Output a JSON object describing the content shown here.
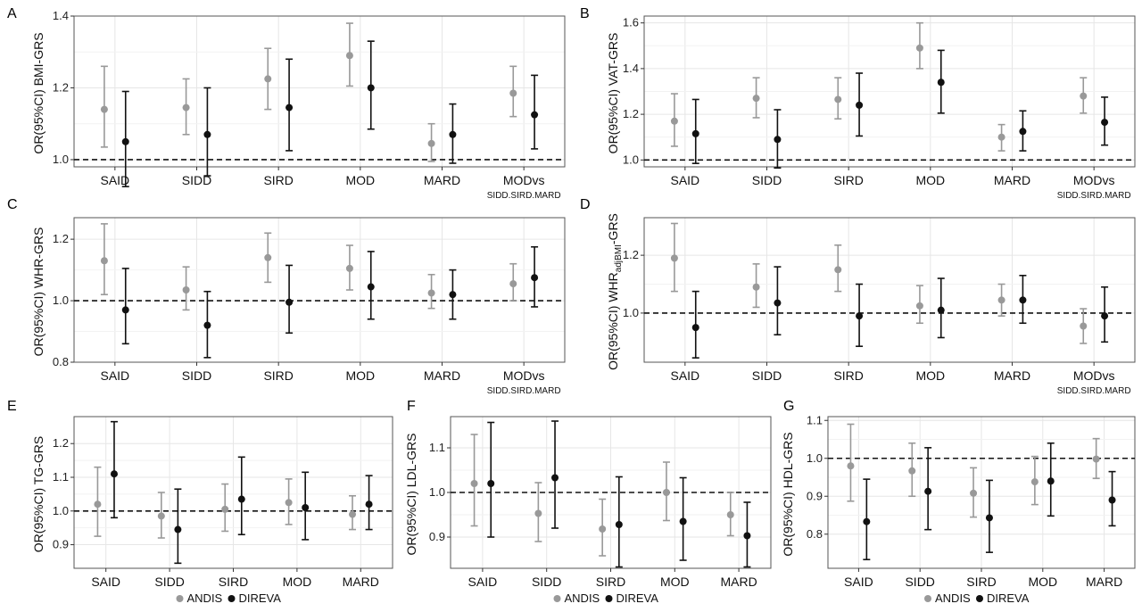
{
  "colors": {
    "andis": "#999999",
    "direva": "#111111",
    "grid": "#e6e6e6",
    "panel_border": "#555555",
    "refline": "#111111"
  },
  "chart_data": [
    {
      "panel_label": "A",
      "type": "scatter",
      "ylabel": "OR(95%CI) BMI-GRS",
      "ylim": [
        0.98,
        1.4
      ],
      "yticks": [
        1.0,
        1.2,
        1.4
      ],
      "yticklabels": [
        "1.0",
        "1.2",
        "1.4"
      ],
      "reference_line": 1.0,
      "categories": [
        "SAID",
        "SIDD",
        "SIRD",
        "MOD",
        "MARD",
        "MODvs"
      ],
      "category_sublabels": [
        "",
        "",
        "",
        "",
        "",
        "SIDD.SIRD.MARD"
      ],
      "series": [
        {
          "name": "ANDIS",
          "or": [
            1.14,
            1.145,
            1.225,
            1.29,
            1.045,
            1.185
          ],
          "lower": [
            1.035,
            1.07,
            1.14,
            1.205,
            0.995,
            1.12
          ],
          "upper": [
            1.26,
            1.225,
            1.31,
            1.38,
            1.1,
            1.26
          ]
        },
        {
          "name": "DIREVA",
          "or": [
            1.05,
            1.07,
            1.145,
            1.2,
            1.07,
            1.125
          ],
          "lower": [
            0.925,
            0.955,
            1.025,
            1.085,
            0.99,
            1.03
          ],
          "upper": [
            1.19,
            1.2,
            1.28,
            1.33,
            1.155,
            1.235
          ]
        }
      ]
    },
    {
      "panel_label": "B",
      "type": "scatter",
      "ylabel": "OR(95%CI) VAT-GRS",
      "ylim": [
        0.97,
        1.63
      ],
      "yticks": [
        1.0,
        1.2,
        1.4,
        1.6
      ],
      "yticklabels": [
        "1.0",
        "1.2",
        "1.4",
        "1.6"
      ],
      "reference_line": 1.0,
      "categories": [
        "SAID",
        "SIDD",
        "SIRD",
        "MOD",
        "MARD",
        "MODvs"
      ],
      "category_sublabels": [
        "",
        "",
        "",
        "",
        "",
        "SIDD.SIRD.MARD"
      ],
      "series": [
        {
          "name": "ANDIS",
          "or": [
            1.17,
            1.27,
            1.265,
            1.49,
            1.1,
            1.28
          ],
          "lower": [
            1.06,
            1.185,
            1.18,
            1.4,
            1.04,
            1.205
          ],
          "upper": [
            1.29,
            1.36,
            1.36,
            1.6,
            1.155,
            1.36
          ]
        },
        {
          "name": "DIREVA",
          "or": [
            1.115,
            1.09,
            1.24,
            1.34,
            1.125,
            1.165
          ],
          "lower": [
            0.985,
            0.965,
            1.105,
            1.205,
            1.04,
            1.065
          ],
          "upper": [
            1.265,
            1.22,
            1.38,
            1.48,
            1.215,
            1.275
          ]
        }
      ]
    },
    {
      "panel_label": "C",
      "type": "scatter",
      "ylabel": "OR(95%CI) WHR-GRS",
      "ylim": [
        0.8,
        1.27
      ],
      "yticks": [
        0.8,
        1.0,
        1.2
      ],
      "yticklabels": [
        "0.8",
        "1.0",
        "1.2"
      ],
      "reference_line": 1.0,
      "categories": [
        "SAID",
        "SIDD",
        "SIRD",
        "MOD",
        "MARD",
        "MODvs"
      ],
      "category_sublabels": [
        "",
        "",
        "",
        "",
        "",
        "SIDD.SIRD.MARD"
      ],
      "series": [
        {
          "name": "ANDIS",
          "or": [
            1.13,
            1.035,
            1.14,
            1.105,
            1.025,
            1.055
          ],
          "lower": [
            1.02,
            0.97,
            1.06,
            1.035,
            0.975,
            1.0
          ],
          "upper": [
            1.25,
            1.11,
            1.22,
            1.18,
            1.085,
            1.12
          ]
        },
        {
          "name": "DIREVA",
          "or": [
            0.97,
            0.92,
            0.995,
            1.045,
            1.02,
            1.075
          ],
          "lower": [
            0.86,
            0.815,
            0.895,
            0.94,
            0.94,
            0.98
          ],
          "upper": [
            1.105,
            1.03,
            1.115,
            1.16,
            1.1,
            1.175
          ]
        }
      ]
    },
    {
      "panel_label": "D",
      "type": "scatter",
      "ylabel": "OR(95%CI) WHR",
      "ylabel_subscript": "adjBMI",
      "ylabel_suffix": "-GRS",
      "ylim": [
        0.83,
        1.33
      ],
      "yticks": [
        1.0,
        1.2
      ],
      "yticklabels": [
        "1.0",
        "1.2"
      ],
      "reference_line": 1.0,
      "categories": [
        "SAID",
        "SIDD",
        "SIRD",
        "MOD",
        "MARD",
        "MODvs"
      ],
      "category_sublabels": [
        "",
        "",
        "",
        "",
        "",
        "SIDD.SIRD.MARD"
      ],
      "series": [
        {
          "name": "ANDIS",
          "or": [
            1.19,
            1.09,
            1.15,
            1.025,
            1.045,
            0.955
          ],
          "lower": [
            1.075,
            1.02,
            1.075,
            0.965,
            0.99,
            0.895
          ],
          "upper": [
            1.31,
            1.17,
            1.235,
            1.095,
            1.1,
            1.015
          ]
        },
        {
          "name": "DIREVA",
          "or": [
            0.95,
            1.035,
            0.99,
            1.01,
            1.045,
            0.99
          ],
          "lower": [
            0.845,
            0.925,
            0.885,
            0.915,
            0.965,
            0.9
          ],
          "upper": [
            1.075,
            1.16,
            1.1,
            1.12,
            1.13,
            1.09
          ]
        }
      ]
    },
    {
      "panel_label": "E",
      "type": "scatter",
      "ylabel": "OR(95%CI) TG-GRS",
      "ylim": [
        0.83,
        1.28
      ],
      "yticks": [
        0.9,
        1.0,
        1.1,
        1.2
      ],
      "yticklabels": [
        "0.9",
        "1.0",
        "1.1",
        "1.2"
      ],
      "reference_line": 1.0,
      "categories": [
        "SAID",
        "SIDD",
        "SIRD",
        "MOD",
        "MARD"
      ],
      "category_sublabels": [
        "",
        "",
        "",
        "",
        ""
      ],
      "series": [
        {
          "name": "ANDIS",
          "or": [
            1.02,
            0.985,
            1.005,
            1.025,
            0.99
          ],
          "lower": [
            0.925,
            0.92,
            0.94,
            0.96,
            0.945
          ],
          "upper": [
            1.13,
            1.055,
            1.08,
            1.095,
            1.045
          ]
        },
        {
          "name": "DIREVA",
          "or": [
            1.11,
            0.945,
            1.035,
            1.01,
            1.02
          ],
          "lower": [
            0.98,
            0.845,
            0.93,
            0.915,
            0.945
          ],
          "upper": [
            1.265,
            1.065,
            1.16,
            1.115,
            1.105
          ]
        }
      ]
    },
    {
      "panel_label": "F",
      "type": "scatter",
      "ylabel": "OR(95%CI) LDL-GRS",
      "ylim": [
        0.83,
        1.17
      ],
      "yticks": [
        0.9,
        1.0,
        1.1
      ],
      "yticklabels": [
        "0.9",
        "1.0",
        "1.1"
      ],
      "reference_line": 1.0,
      "categories": [
        "SAID",
        "SIDD",
        "SIRD",
        "MOD",
        "MARD"
      ],
      "category_sublabels": [
        "",
        "",
        "",
        "",
        ""
      ],
      "series": [
        {
          "name": "ANDIS",
          "or": [
            1.02,
            0.953,
            0.918,
            1.0,
            0.95
          ],
          "lower": [
            0.925,
            0.89,
            0.858,
            0.937,
            0.903
          ],
          "upper": [
            1.13,
            1.022,
            0.985,
            1.068,
            1.0
          ]
        },
        {
          "name": "DIREVA",
          "or": [
            1.02,
            1.033,
            0.928,
            0.935,
            0.903
          ],
          "lower": [
            0.9,
            0.92,
            0.833,
            0.848,
            0.833
          ],
          "upper": [
            1.157,
            1.16,
            1.035,
            1.033,
            0.978
          ]
        }
      ]
    },
    {
      "panel_label": "G",
      "type": "scatter",
      "ylabel": "OR(95%CI) HDL-GRS",
      "ylim": [
        0.71,
        1.11
      ],
      "yticks": [
        0.8,
        0.9,
        1.0,
        1.1
      ],
      "yticklabels": [
        "0.8",
        "0.9",
        "1.0",
        "1.1"
      ],
      "reference_line": 1.0,
      "categories": [
        "SAID",
        "SIDD",
        "SIRD",
        "MOD",
        "MARD"
      ],
      "category_sublabels": [
        "",
        "",
        "",
        "",
        ""
      ],
      "series": [
        {
          "name": "ANDIS",
          "or": [
            0.98,
            0.967,
            0.908,
            0.938,
            0.998
          ],
          "lower": [
            0.887,
            0.9,
            0.845,
            0.878,
            0.947
          ],
          "upper": [
            1.09,
            1.04,
            0.975,
            1.005,
            1.052
          ]
        },
        {
          "name": "DIREVA",
          "or": [
            0.833,
            0.913,
            0.843,
            0.94,
            0.89
          ],
          "lower": [
            0.733,
            0.812,
            0.752,
            0.848,
            0.822
          ],
          "upper": [
            0.945,
            1.028,
            0.942,
            1.04,
            0.965
          ]
        }
      ]
    }
  ],
  "legend": {
    "items": [
      "ANDIS",
      "DIREVA"
    ]
  }
}
